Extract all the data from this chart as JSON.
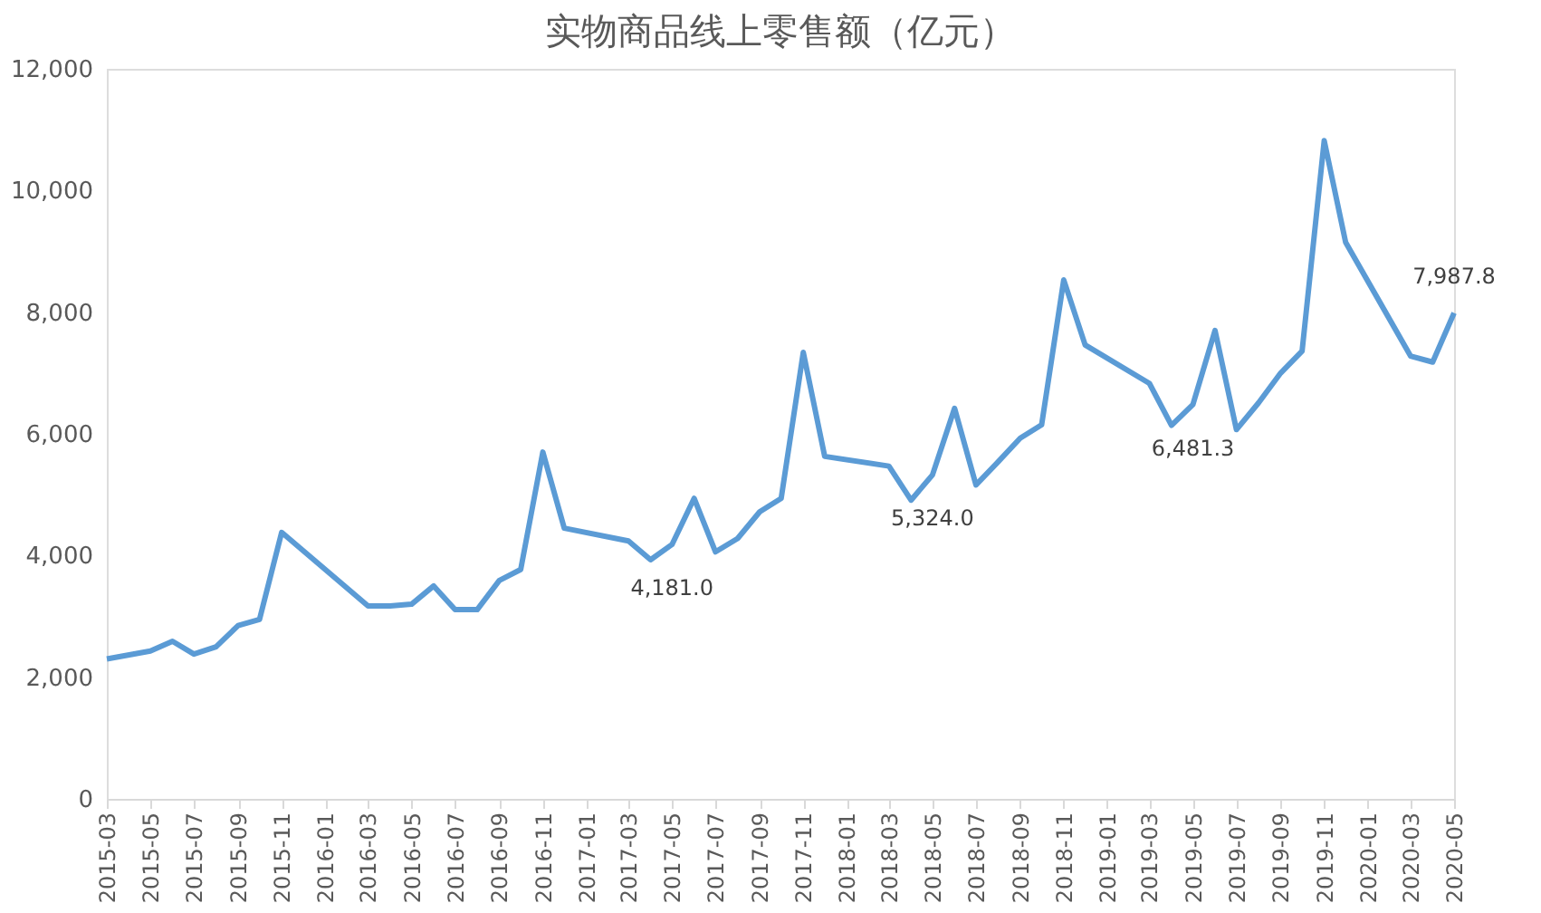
{
  "chart_data": {
    "type": "line",
    "title": "实物商品线上零售额（亿元）",
    "x": [
      "2015-03",
      "2015-05",
      "2015-06",
      "2015-07",
      "2015-08",
      "2015-09",
      "2015-10",
      "2015-11",
      "2016-03",
      "2016-04",
      "2016-05",
      "2016-06",
      "2016-07",
      "2016-08",
      "2016-09",
      "2016-10",
      "2016-11",
      "2016-12",
      "2017-03",
      "2017-04",
      "2017-05",
      "2017-06",
      "2017-07",
      "2017-08",
      "2017-09",
      "2017-10",
      "2017-11",
      "2017-12",
      "2018-03",
      "2018-04",
      "2018-05",
      "2018-06",
      "2018-07",
      "2018-08",
      "2018-09",
      "2018-10",
      "2018-11",
      "2018-12",
      "2019-03",
      "2019-04",
      "2019-05",
      "2019-06",
      "2019-07",
      "2019-08",
      "2019-09",
      "2019-10",
      "2019-11",
      "2019-12",
      "2020-03",
      "2020-04",
      "2020-05"
    ],
    "series": [
      {
        "color": "#5b9bd5",
        "values": [
          2300,
          2430,
          2590,
          2380,
          2500,
          2850,
          2950,
          4380,
          3170,
          3170,
          3200,
          3500,
          3110,
          3110,
          3590,
          3770,
          5700,
          4450,
          4240,
          3930,
          4181,
          4940,
          4060,
          4280,
          4720,
          4940,
          7340,
          5630,
          5470,
          4910,
          5324,
          6420,
          5160,
          5540,
          5930,
          6150,
          8530,
          7460,
          6830,
          6140,
          6481.3,
          7700,
          6070,
          6510,
          7000,
          7360,
          10820,
          9150,
          7280,
          7180,
          7987.8
        ]
      }
    ],
    "xlim": [
      "2015-03",
      "2020-05"
    ],
    "xticks": [
      "2015-03",
      "2015-05",
      "2015-07",
      "2015-09",
      "2015-11",
      "2016-01",
      "2016-03",
      "2016-05",
      "2016-07",
      "2016-09",
      "2016-11",
      "2017-01",
      "2017-03",
      "2017-05",
      "2017-07",
      "2017-09",
      "2017-11",
      "2018-01",
      "2018-03",
      "2018-05",
      "2018-07",
      "2018-09",
      "2018-11",
      "2019-01",
      "2019-03",
      "2019-05",
      "2019-07",
      "2019-09",
      "2019-11",
      "2020-01",
      "2020-03",
      "2020-05"
    ],
    "ylim": [
      0,
      12000
    ],
    "yticks": [
      0,
      {
        "value": 2000,
        "label": "2,000"
      },
      {
        "value": 4000,
        "label": "4,000"
      },
      {
        "value": 6000,
        "label": "6,000"
      },
      {
        "value": 8000,
        "label": "8,000"
      },
      {
        "value": 10000,
        "label": "10,000"
      },
      {
        "value": 12000,
        "label": "12,000"
      }
    ],
    "grid": false,
    "legend": false,
    "marker": "none",
    "line_style": "solid",
    "annotations": [
      {
        "text": "4,181.0",
        "x": "2017-05",
        "y": 4181
      },
      {
        "text": "5,324.0",
        "x": "2018-05",
        "y": 5324
      },
      {
        "text": "6,481.3",
        "x": "2019-05",
        "y": 6481.3
      },
      {
        "text": "7,987.8",
        "x": "2020-05",
        "y": 7987.8
      }
    ]
  }
}
